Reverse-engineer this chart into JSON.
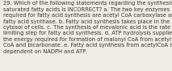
{
  "text": "29. Which of the following statements regarding the synthesis of\nsaturated fatty acids is INCORRECT? a. The two key enzymes\nrequired for fatty acid synthesis are acetyl CoA carboxylase and\nfatty acid synthase. b. Fatty acid synthesis takes place in the\ncytosol of cells. c. The synthesis of mevalonic acid is the rate\nlimiting step for fatty acid synthesis. d. ATP hydrolysis supplies\nthe energy required for formation of malonyl CoA from acetyl\nCoA and bicarbonate. e. Fatty acid synthesis from acetylCoA is\ndependent on NADPH and ATP.",
  "font_size": 4.85,
  "text_color": "#3a3530",
  "background_color": "#f0ede5",
  "figsize": [
    2.13,
    0.88
  ],
  "dpi": 100
}
